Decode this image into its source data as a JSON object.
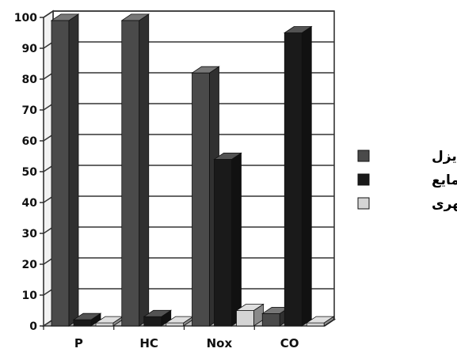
{
  "chart_data": {
    "type": "bar",
    "categories": [
      "P",
      "HC",
      "Nox",
      "CO"
    ],
    "series": [
      {
        "name": "دیزل",
        "values": [
          99,
          99,
          82,
          4
        ],
        "color": "#4a4a4a"
      },
      {
        "name": "گاز مایع",
        "values": [
          2,
          3,
          54,
          95
        ],
        "color": "#1a1a1a"
      },
      {
        "name": "گاز شهری",
        "values": [
          1,
          1,
          5,
          1
        ],
        "color": "#d4d4d4"
      }
    ],
    "ylim": [
      0,
      100
    ],
    "yticks": [
      0,
      10,
      20,
      30,
      40,
      50,
      60,
      70,
      80,
      90,
      100
    ],
    "grid": true,
    "legend": "right",
    "three_d": true
  }
}
